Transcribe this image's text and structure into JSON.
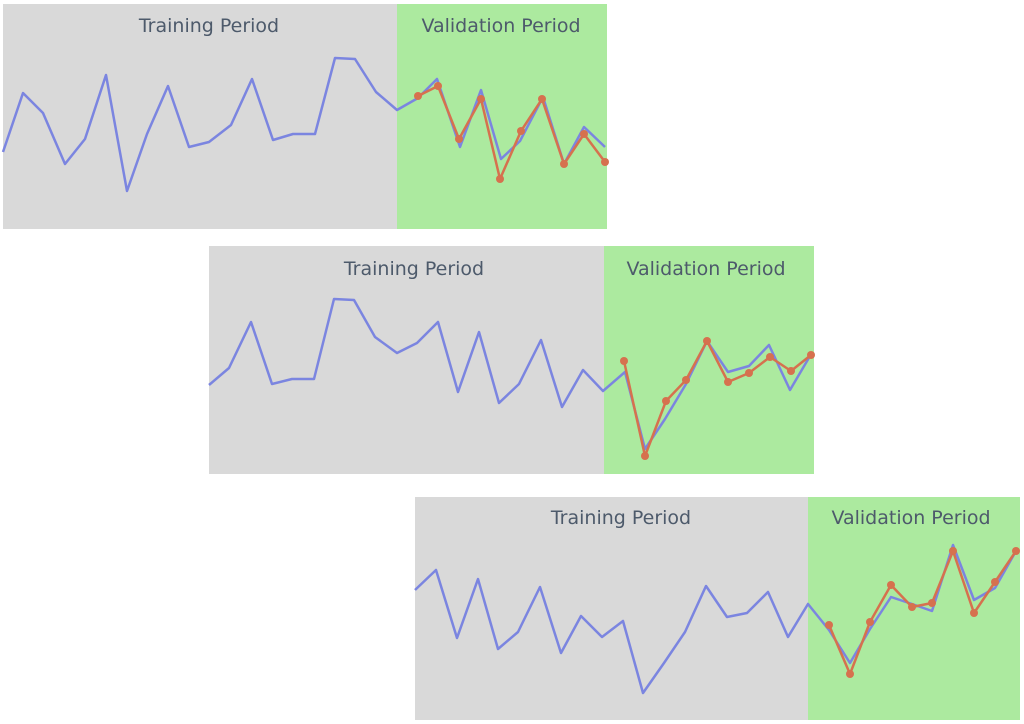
{
  "panels": [
    {
      "training_label": "Training Period",
      "validation_label": "Validation Period"
    },
    {
      "training_label": "Training Period",
      "validation_label": "Validation Period"
    },
    {
      "training_label": "Training Period",
      "validation_label": "Validation Period"
    }
  ],
  "colors": {
    "training_background": "#d9d9d9",
    "validation_background": "#acea9f",
    "actual_series": "#7b85e0",
    "forecast_series": "#d6714e",
    "label_text": "#4d5a6b"
  }
}
